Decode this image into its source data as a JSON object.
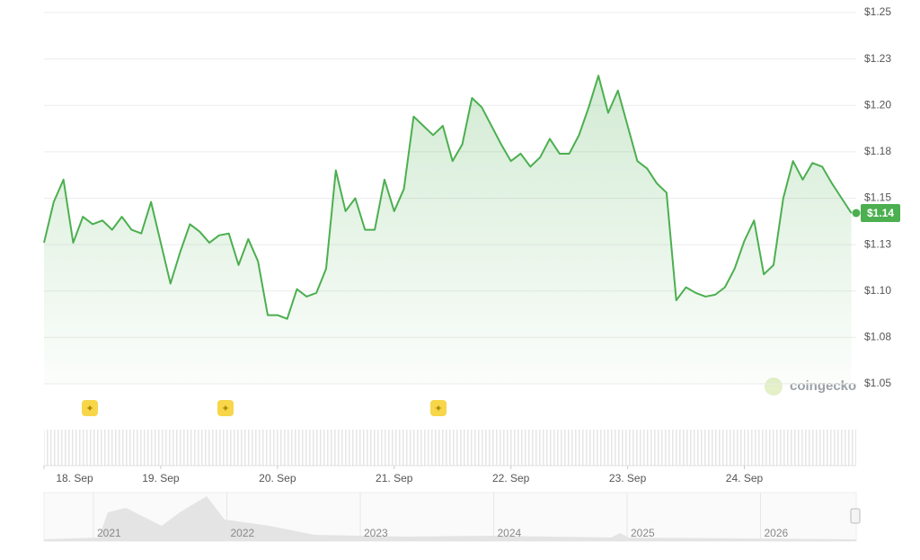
{
  "chart_data": {
    "type": "line",
    "values": [
      1.126,
      1.148,
      1.16,
      1.126,
      1.14,
      1.136,
      1.138,
      1.133,
      1.14,
      1.133,
      1.131,
      1.148,
      1.126,
      1.104,
      1.121,
      1.136,
      1.132,
      1.126,
      1.13,
      1.131,
      1.114,
      1.128,
      1.116,
      1.087,
      1.087,
      1.085,
      1.101,
      1.097,
      1.099,
      1.112,
      1.165,
      1.143,
      1.15,
      1.133,
      1.133,
      1.16,
      1.143,
      1.155,
      1.194,
      1.189,
      1.184,
      1.189,
      1.17,
      1.179,
      1.204,
      1.199,
      1.189,
      1.179,
      1.17,
      1.174,
      1.167,
      1.172,
      1.182,
      1.174,
      1.174,
      1.184,
      1.199,
      1.216,
      1.196,
      1.208,
      1.189,
      1.17,
      1.166,
      1.158,
      1.153,
      1.095,
      1.102,
      1.099,
      1.097,
      1.098,
      1.102,
      1.112,
      1.127,
      1.138,
      1.109,
      1.114,
      1.15,
      1.17,
      1.16,
      1.169,
      1.167,
      1.158,
      1.15,
      1.142
    ],
    "xlim": [
      0,
      83.5
    ],
    "xticks": [
      {
        "value": 0,
        "label": "18. Sep"
      },
      {
        "value": 12,
        "label": "19. Sep"
      },
      {
        "value": 24,
        "label": "20. Sep"
      },
      {
        "value": 36,
        "label": "21. Sep"
      },
      {
        "value": 48,
        "label": "22. Sep"
      },
      {
        "value": 60,
        "label": "23. Sep"
      },
      {
        "value": 72,
        "label": "24. Sep"
      }
    ],
    "ylim": [
      1.05,
      1.25
    ],
    "yticks": [
      {
        "value": 1.05,
        "label": "$1.05"
      },
      {
        "value": 1.075,
        "label": "$1.08"
      },
      {
        "value": 1.1,
        "label": "$1.10"
      },
      {
        "value": 1.125,
        "label": "$1.13"
      },
      {
        "value": 1.15,
        "label": "$1.15"
      },
      {
        "value": 1.175,
        "label": "$1.18"
      },
      {
        "value": 1.2,
        "label": "$1.20"
      },
      {
        "value": 1.225,
        "label": "$1.23"
      },
      {
        "value": 1.25,
        "label": "$1.25"
      }
    ],
    "grid": true,
    "color": "#4caf50",
    "current_label": "$1.14"
  },
  "navigator": {
    "years": [
      "2021",
      "2022",
      "2023",
      "2024",
      "2025",
      "2026"
    ]
  },
  "watermark": "coingecko"
}
